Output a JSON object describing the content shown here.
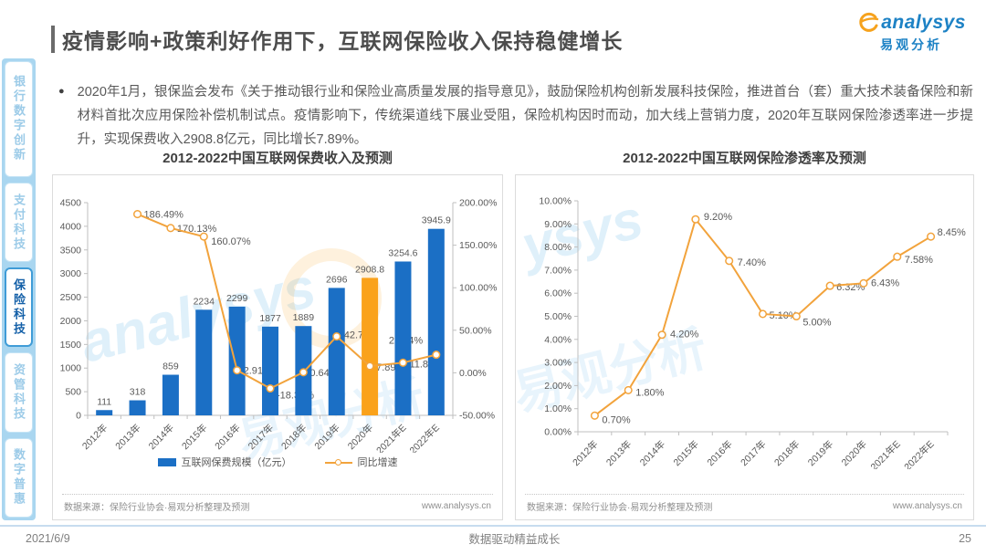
{
  "header": {
    "title": "疫情影响+政策利好作用下，互联网保险收入保持稳健增长",
    "logo": {
      "brand": "analysys",
      "brand_cn": "易观分析",
      "orange": "#f6a21d",
      "blue": "#1d82c5"
    }
  },
  "sidebar": {
    "items": [
      {
        "label": "银行数字创新",
        "active": false
      },
      {
        "label": "支付科技",
        "active": false
      },
      {
        "label": "保险科技",
        "active": true
      },
      {
        "label": "资管科技",
        "active": false
      },
      {
        "label": "数字普惠",
        "active": false
      }
    ]
  },
  "intro": {
    "bullet": "●",
    "text": "2020年1月，银保监会发布《关于推动银行业和保险业高质量发展的指导意见》，鼓励保险机构创新发展科技保险，推进首台（套）重大技术装备保险和新材料首批次应用保险补偿机制试点。疫情影响下，传统渠道线下展业受阻，保险机构因时而动，加大线上营销力度，2020年互联网保险渗透率进一步提升，实现保费收入2908.8亿元，同比增长7.89%。"
  },
  "chart_data": [
    {
      "type": "bar+line",
      "title": "2012-2022中国互联网保费收入及预测",
      "categories": [
        "2012年",
        "2013年",
        "2014年",
        "2015年",
        "2016年",
        "2017年",
        "2018年",
        "2019年",
        "2020年",
        "2021年E",
        "2022年E"
      ],
      "series": [
        {
          "name": "互联网保费规模（亿元）",
          "type": "bar",
          "axis": "left",
          "color": "#1b6fc5",
          "highlight_color": "#faa21b",
          "highlight_index": 8,
          "values": [
            111,
            318,
            859,
            2234,
            2299,
            1877,
            1889,
            2696,
            2908.8,
            3254.6,
            3945.9
          ],
          "labels": [
            "111",
            "318",
            "859",
            "2234",
            "2299",
            "1877",
            "1889",
            "2696",
            "2908.8",
            "3254.6",
            "3945.9"
          ]
        },
        {
          "name": "同比增速",
          "type": "line",
          "axis": "right",
          "color": "#f2a33c",
          "values": [
            null,
            186.49,
            170.13,
            160.07,
            2.91,
            -18.36,
            0.64,
            42.72,
            7.89,
            11.89,
            21.24
          ],
          "labels": [
            "",
            "186.49%",
            "170.13%",
            "160.07%",
            "2.91%",
            "-18.36%",
            "0.64%",
            "42.72%",
            "7.89%",
            "11.89%",
            "21.24%"
          ],
          "label_offsets": [
            [
              0,
              0
            ],
            [
              7,
              4
            ],
            [
              7,
              4
            ],
            [
              8,
              9
            ],
            [
              7,
              4
            ],
            [
              7,
              11
            ],
            [
              7,
              4
            ],
            [
              8,
              2
            ],
            [
              7,
              5
            ],
            [
              7,
              5
            ],
            [
              -52,
              -12
            ]
          ]
        }
      ],
      "left_axis": {
        "min": 0,
        "max": 4500,
        "ticks": [
          "0",
          "500",
          "1000",
          "1500",
          "2000",
          "2500",
          "3000",
          "3500",
          "4000",
          "4500"
        ]
      },
      "right_axis": {
        "min": -50,
        "max": 200,
        "ticks": [
          "-50.00%",
          "0.00%",
          "50.00%",
          "100.00%",
          "150.00%",
          "200.00%"
        ]
      },
      "legend": [
        {
          "label": "互联网保费规模（亿元）",
          "marker": "bar",
          "color": "#1b6fc5"
        },
        {
          "label": "同比增速",
          "marker": "line",
          "color": "#f2a33c"
        }
      ],
      "source": "数据来源：保险行业协会·易观分析整理及预测",
      "website": "www.analysys.cn"
    },
    {
      "type": "line",
      "title": "2012-2022中国互联网保险渗透率及预测",
      "categories": [
        "2012年",
        "2013年",
        "2014年",
        "2015年",
        "2016年",
        "2017年",
        "2018年",
        "2019年",
        "2020年",
        "2021年E",
        "2022年E"
      ],
      "series": [
        {
          "type": "line",
          "axis": "left",
          "color": "#f2a33c",
          "values": [
            0.7,
            1.8,
            4.2,
            9.2,
            7.4,
            5.1,
            5.0,
            6.32,
            6.43,
            7.58,
            8.45
          ],
          "labels": [
            "0.70%",
            "1.80%",
            "4.20%",
            "9.20%",
            "7.40%",
            "5.10%",
            "5.00%",
            "6.32%",
            "6.43%",
            "7.58%",
            "8.45%"
          ],
          "label_offsets": [
            [
              8,
              8
            ],
            [
              8,
              6
            ],
            [
              9,
              3
            ],
            [
              9,
              1
            ],
            [
              9,
              5
            ],
            [
              7,
              5
            ],
            [
              7,
              10
            ],
            [
              7,
              5
            ],
            [
              8,
              3
            ],
            [
              8,
              7
            ],
            [
              7,
              -1
            ]
          ]
        }
      ],
      "left_axis": {
        "min": 0,
        "max": 10,
        "ticks": [
          "0.00%",
          "1.00%",
          "2.00%",
          "3.00%",
          "4.00%",
          "5.00%",
          "6.00%",
          "7.00%",
          "8.00%",
          "9.00%",
          "10.00%"
        ]
      },
      "source": "数据来源：保险行业协会·易观分析整理及预测",
      "website": "www.analysys.cn"
    }
  ],
  "footer": {
    "date": "2021/6/9",
    "slogan": "数据驱动精益成长",
    "page": "25"
  }
}
